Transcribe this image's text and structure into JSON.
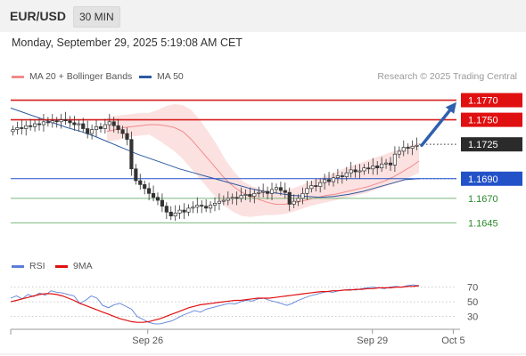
{
  "header": {
    "pair": "EUR/USD",
    "timeframe": "30 MIN"
  },
  "datetime": "Monday, September 29, 2025 5:19:08 AM CET",
  "legend": {
    "bollinger": {
      "label": "MA 20 + Bollinger Bands",
      "color": "#f28a8a"
    },
    "ma50": {
      "label": "MA 50",
      "color": "#2c5aa0"
    }
  },
  "credit": "Research © 2025 Trading Central",
  "rsi_legend": {
    "rsi": {
      "label": "RSI",
      "color": "#5b7fd6"
    },
    "ma": {
      "label": "9MA",
      "color": "#e01010"
    }
  },
  "chart_data": [
    {
      "type": "candlestick",
      "ylim": [
        1.162,
        1.1785
      ],
      "levels": [
        {
          "value": 1.177,
          "label": "1.1770",
          "style": "resistance"
        },
        {
          "value": 1.175,
          "label": "1.1750",
          "style": "resistance"
        },
        {
          "value": 1.1725,
          "label": "1.1725",
          "style": "current"
        },
        {
          "value": 1.169,
          "label": "1.1690",
          "style": "pivot"
        },
        {
          "value": 1.167,
          "label": "1.1670",
          "style": "support"
        },
        {
          "value": 1.1645,
          "label": "1.1645",
          "style": "support"
        }
      ],
      "closes": [
        1.174,
        1.1742,
        1.1741,
        1.1744,
        1.1743,
        1.1746,
        1.1745,
        1.1748,
        1.1747,
        1.1749,
        1.1748,
        1.175,
        1.1749,
        1.1747,
        1.1745,
        1.1746,
        1.1741,
        1.1736,
        1.174,
        1.1743,
        1.1741,
        1.1745,
        1.1748,
        1.1744,
        1.174,
        1.1736,
        1.173,
        1.17,
        1.1688,
        1.1684,
        1.168,
        1.1675,
        1.1671,
        1.1668,
        1.1662,
        1.1656,
        1.1652,
        1.1655,
        1.1658,
        1.1656,
        1.166,
        1.1661,
        1.1663,
        1.1662,
        1.166,
        1.1663,
        1.1665,
        1.1667,
        1.1668,
        1.167,
        1.1671,
        1.167,
        1.1673,
        1.1674,
        1.1672,
        1.1675,
        1.1676,
        1.1677,
        1.1675,
        1.1679,
        1.1681,
        1.1678,
        1.1676,
        1.1664,
        1.1667,
        1.167,
        1.1675,
        1.168,
        1.1683,
        1.1682,
        1.1686,
        1.1689,
        1.1687,
        1.1691,
        1.1693,
        1.1692,
        1.1696,
        1.1699,
        1.1697,
        1.1698,
        1.1701,
        1.17,
        1.1703,
        1.1701,
        1.1705,
        1.1706,
        1.1704,
        1.1715,
        1.1718,
        1.1722,
        1.1721,
        1.1723,
        1.1724
      ],
      "bb_mid": [
        1.1738,
        1.174,
        1.1742,
        1.1743,
        1.1744,
        1.1745,
        1.1745,
        1.1744,
        1.1742,
        1.1738,
        1.173,
        1.172,
        1.171,
        1.17,
        1.169,
        1.1682,
        1.1676,
        1.1672,
        1.1669,
        1.1666,
        1.1664,
        1.1664,
        1.1665,
        1.1667,
        1.1669,
        1.1671,
        1.1673,
        1.1674,
        1.1676,
        1.1678,
        1.168,
        1.1682,
        1.1685,
        1.1688,
        1.1692,
        1.1697,
        1.1702,
        1.1708
      ],
      "bb_upper": [
        1.1752,
        1.1754,
        1.1755,
        1.1756,
        1.1757,
        1.1757,
        1.176,
        1.1764,
        1.1766,
        1.1765,
        1.176,
        1.175,
        1.1738,
        1.1725,
        1.171,
        1.1698,
        1.1688,
        1.1683,
        1.168,
        1.1678,
        1.1677,
        1.1678,
        1.168,
        1.1683,
        1.1687,
        1.169,
        1.1693,
        1.1696,
        1.17,
        1.1703,
        1.1706,
        1.1709,
        1.1712,
        1.1715,
        1.1718,
        1.1721,
        1.1724,
        1.1727
      ],
      "bb_lower": [
        1.1728,
        1.1729,
        1.1731,
        1.1733,
        1.1734,
        1.1735,
        1.173,
        1.1724,
        1.1718,
        1.171,
        1.17,
        1.169,
        1.168,
        1.167,
        1.1662,
        1.1656,
        1.1652,
        1.1651,
        1.1652,
        1.1653,
        1.1653,
        1.1654,
        1.1656,
        1.1659,
        1.1662,
        1.1664,
        1.1666,
        1.1668,
        1.167,
        1.1672,
        1.1674,
        1.1676,
        1.1679,
        1.1682,
        1.1685,
        1.1688,
        1.1692,
        1.1696
      ],
      "ma50": [
        1.1762,
        1.1757,
        1.1752,
        1.1747,
        1.1742,
        1.1738,
        1.1733,
        1.1727,
        1.1721,
        1.1715,
        1.171,
        1.1705,
        1.17,
        1.1696,
        1.1692,
        1.1688,
        1.1684,
        1.168,
        1.1677,
        1.1675,
        1.1673,
        1.1672,
        1.1671,
        1.1672,
        1.1674,
        1.1677,
        1.1681,
        1.1685,
        1.1689,
        1.169
      ]
    },
    {
      "type": "line",
      "name": "RSI",
      "ylim": [
        15,
        78
      ],
      "yticks": [
        "70",
        "50",
        "30"
      ],
      "ytick_values": [
        70,
        50,
        30
      ],
      "xticks": [
        "Sep 26",
        "Sep 29",
        "Oct 5"
      ],
      "xtick_positions": [
        0.305,
        0.805,
        0.985
      ],
      "series": [
        {
          "name": "RSI",
          "values": [
            55,
            58,
            54,
            60,
            57,
            62,
            59,
            65,
            63,
            62,
            60,
            58,
            48,
            52,
            58,
            55,
            45,
            42,
            46,
            48,
            44,
            40,
            30,
            26,
            22,
            20,
            20,
            22,
            24,
            28,
            32,
            35,
            38,
            36,
            40,
            42,
            44,
            46,
            48,
            47,
            50,
            52,
            51,
            54,
            55,
            52,
            50,
            48,
            45,
            48,
            52,
            55,
            58,
            60,
            62,
            64,
            63,
            65,
            66,
            67,
            66,
            68,
            69,
            70,
            69,
            68,
            70,
            71,
            70,
            72,
            73,
            72
          ]
        },
        {
          "name": "9MA",
          "values": [
            50,
            52,
            54,
            56,
            58,
            60,
            61,
            61,
            60,
            58,
            55,
            52,
            48,
            45,
            42,
            39,
            36,
            33,
            30,
            27,
            25,
            23,
            22,
            22,
            23,
            25,
            27,
            30,
            33,
            36,
            39,
            42,
            44,
            46,
            47,
            48,
            49,
            50,
            51,
            52,
            52,
            53,
            54,
            55,
            55,
            55,
            56,
            57,
            58,
            59,
            60,
            61,
            62,
            63,
            64,
            64,
            65,
            65,
            66,
            66,
            67,
            67,
            68,
            68,
            69,
            69,
            69,
            70,
            70,
            71,
            71,
            72
          ]
        }
      ]
    }
  ]
}
